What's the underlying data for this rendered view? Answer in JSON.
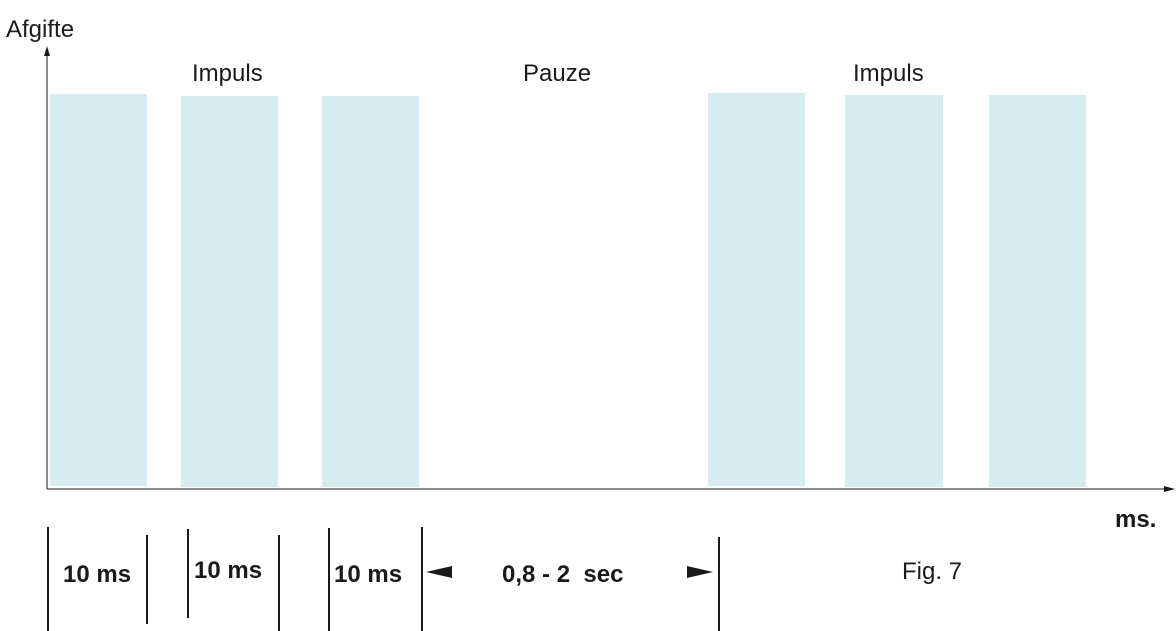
{
  "figure": {
    "y_axis_label": "Afgifte",
    "x_axis_unit": "ms.",
    "caption": "Fig. 7",
    "section_labels": {
      "impuls_left": "Impuls",
      "pauze": "Pauze",
      "impuls_right": "Impuls"
    },
    "durations": {
      "pulse_1": "10 ms",
      "pulse_2": "10 ms",
      "pulse_3": "10 ms",
      "pause": "0,8 - 2  sec"
    },
    "bar_color": "#d7ecf0",
    "line_color": "#1a1a1a"
  }
}
